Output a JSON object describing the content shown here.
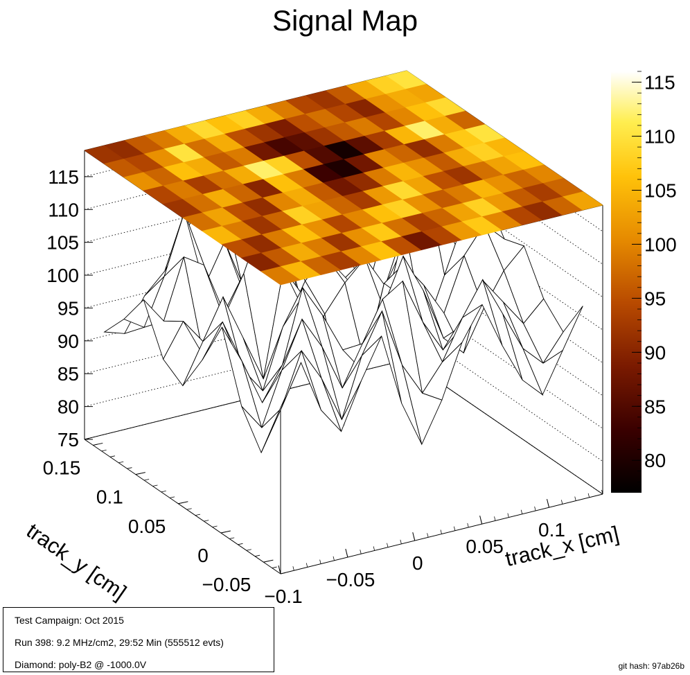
{
  "title": "Signal Map",
  "chart_data": {
    "type": "surface-heatmap",
    "title": "Signal Map",
    "xlabel": "track_x [cm]",
    "ylabel": "track_y [cm]",
    "x_ticks": [
      "−0.1",
      "−0.05",
      "0",
      "0.05",
      "0.1"
    ],
    "x_tick_values": [
      -0.1,
      -0.05,
      0,
      0.05,
      0.1
    ],
    "y_ticks": [
      "−0.05",
      "0",
      "0.05",
      "0.1",
      "0.15"
    ],
    "y_tick_values": [
      -0.05,
      0,
      0.05,
      0.1,
      0.15
    ],
    "z_ticks": [
      "75",
      "80",
      "85",
      "90",
      "95",
      "100",
      "105",
      "110",
      "115"
    ],
    "z_tick_values": [
      75,
      80,
      85,
      90,
      95,
      100,
      105,
      110,
      115
    ],
    "zlim": [
      75,
      119
    ],
    "xlim": [
      -0.1,
      0.14
    ],
    "ylim": [
      -0.07,
      0.16
    ],
    "colorbar_ticks": [
      "80",
      "85",
      "90",
      "95",
      "100",
      "105",
      "110",
      "115"
    ],
    "colorbar_tick_values": [
      80,
      85,
      90,
      95,
      100,
      105,
      110,
      115
    ],
    "colorbar_range": [
      77,
      116
    ],
    "palette": [
      "#000000",
      "#3a0000",
      "#7a1a00",
      "#b84a00",
      "#e68a00",
      "#ffc20a",
      "#ffee50",
      "#ffffff"
    ],
    "grid_rows": [
      [
        92,
        91,
        96,
        99,
        104,
        109,
        106,
        108,
        104,
        99,
        94,
        92,
        96,
        104,
        108,
        110
      ],
      [
        96,
        94,
        101,
        110,
        98,
        104,
        95,
        92,
        89,
        95,
        98,
        94,
        90,
        101,
        104,
        103
      ],
      [
        101,
        97,
        106,
        104,
        96,
        99,
        88,
        84,
        86,
        92,
        96,
        99,
        94,
        100,
        106,
        109
      ],
      [
        94,
        99,
        93,
        98,
        104,
        112,
        108,
        95,
        85,
        79,
        86,
        93,
        105,
        112,
        104,
        97
      ],
      [
        92,
        98,
        104,
        97,
        90,
        106,
        99,
        83,
        80,
        88,
        100,
        97,
        91,
        99,
        107,
        110
      ],
      [
        98,
        103,
        95,
        91,
        100,
        104,
        96,
        88,
        91,
        99,
        105,
        101,
        96,
        104,
        108,
        105
      ],
      [
        105,
        99,
        92,
        97,
        108,
        103,
        97,
        93,
        102,
        109,
        103,
        95,
        92,
        98,
        103,
        106
      ],
      [
        95,
        91,
        99,
        106,
        101,
        94,
        100,
        106,
        108,
        101,
        96,
        99,
        105,
        101,
        97,
        100
      ],
      [
        90,
        96,
        104,
        99,
        92,
        101,
        107,
        98,
        93,
        97,
        103,
        108,
        102,
        96,
        93,
        97
      ],
      [
        99,
        105,
        97,
        93,
        100,
        106,
        95,
        88,
        94,
        102,
        107,
        100,
        94,
        91,
        97,
        103
      ]
    ]
  },
  "legend": {
    "line1": "Test Campaign: Oct 2015",
    "line2": "Run 398: 9.2 MHz/cm2, 29:52 Min (555512 evts)",
    "line3": "Diamond: poly-B2 @ -1000.0V"
  },
  "git_hash": "git hash: 97ab26b"
}
